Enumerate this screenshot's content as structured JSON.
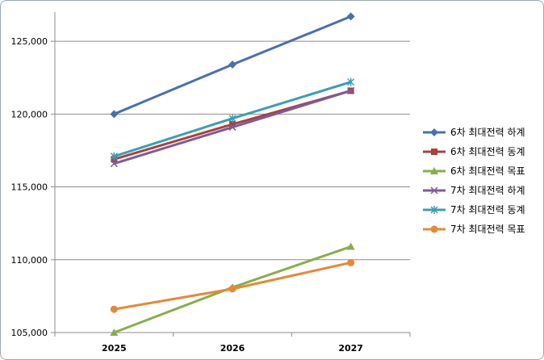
{
  "chart_data": {
    "type": "line",
    "categories": [
      "2025",
      "2026",
      "2027"
    ],
    "y_ticks": [
      "105,000",
      "110,000",
      "115,000",
      "120,000",
      "125,000"
    ],
    "ylim": [
      105000,
      127000
    ],
    "legend_position": "right",
    "grid": true,
    "series": [
      {
        "name": "6차 최대전력 하계",
        "values": [
          120000,
          123400,
          126700
        ],
        "color": "#4a71a8",
        "marker": "diamond"
      },
      {
        "name": "6차 최대전력 동계",
        "values": [
          116900,
          119300,
          121600
        ],
        "color": "#a8423f",
        "marker": "square"
      },
      {
        "name": "6차 최대전력 목표",
        "values": [
          105000,
          108100,
          110900
        ],
        "color": "#8aac4e",
        "marker": "triangle"
      },
      {
        "name": "7차 최대전력 하계",
        "values": [
          116600,
          119100,
          121600
        ],
        "color": "#7b5c9c",
        "marker": "x"
      },
      {
        "name": "7차 최대전력 동계",
        "values": [
          117100,
          119700,
          122200
        ],
        "color": "#3e9db4",
        "marker": "star"
      },
      {
        "name": "7차 최대전력 목표",
        "values": [
          106600,
          108000,
          109800
        ],
        "color": "#e28a3a",
        "marker": "circle"
      }
    ]
  }
}
